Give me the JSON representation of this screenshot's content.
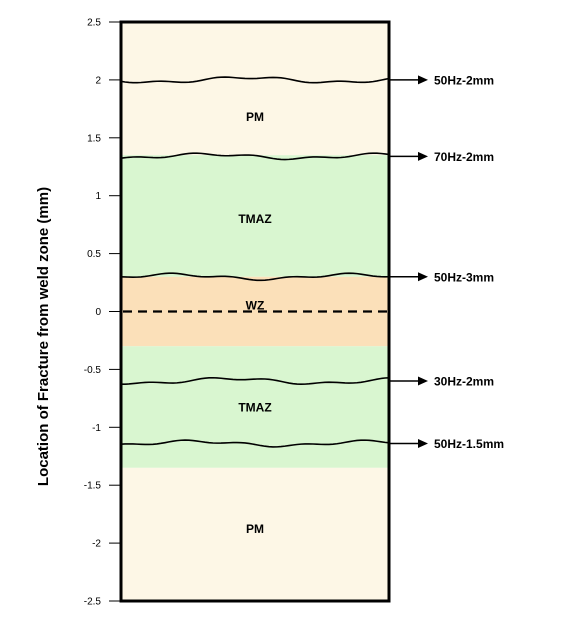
{
  "chart_data": {
    "type": "diagram",
    "ylabel": "Location of Fracture from weld zone (mm)",
    "ylim": [
      -2.5,
      2.5
    ],
    "yticks": [
      "2.5",
      "2",
      "1.5",
      "1",
      "0.5",
      "0",
      "-0.5",
      "-1",
      "-1.5",
      "-2",
      "-2.5"
    ],
    "ytick_values": [
      2.5,
      2,
      1.5,
      1,
      0.5,
      0,
      -0.5,
      -1,
      -1.5,
      -2,
      -2.5
    ],
    "zones": [
      {
        "label": "PM",
        "from": 1.35,
        "to": 2.5,
        "color": "#fdf7e6"
      },
      {
        "label": "TMAZ",
        "from": 0.3,
        "to": 1.35,
        "color": "#d9f6d0"
      },
      {
        "label": "WZ",
        "from": -0.3,
        "to": 0.3,
        "color": "#fbe0b9"
      },
      {
        "label": "TMAZ",
        "from": -1.35,
        "to": -0.3,
        "color": "#d9f6d0"
      },
      {
        "label": "PM",
        "from": -2.5,
        "to": -1.35,
        "color": "#fdf7e6"
      }
    ],
    "zone_label_positions": [
      1.68,
      0.8,
      0.05,
      -0.83,
      -1.88
    ],
    "center_line": 0,
    "fractures": [
      {
        "label": "50Hz-2mm",
        "y": 2.0
      },
      {
        "label": "70Hz-2mm",
        "y": 1.34
      },
      {
        "label": "50Hz-3mm",
        "y": 0.3
      },
      {
        "label": "30Hz-2mm",
        "y": -0.6
      },
      {
        "label": "50Hz-1.5mm",
        "y": -1.14
      }
    ],
    "colors": {
      "pm": "#fdf7e6",
      "tmaz": "#d9f6d0",
      "wz": "#fbe0b9",
      "line": "#000000"
    }
  }
}
